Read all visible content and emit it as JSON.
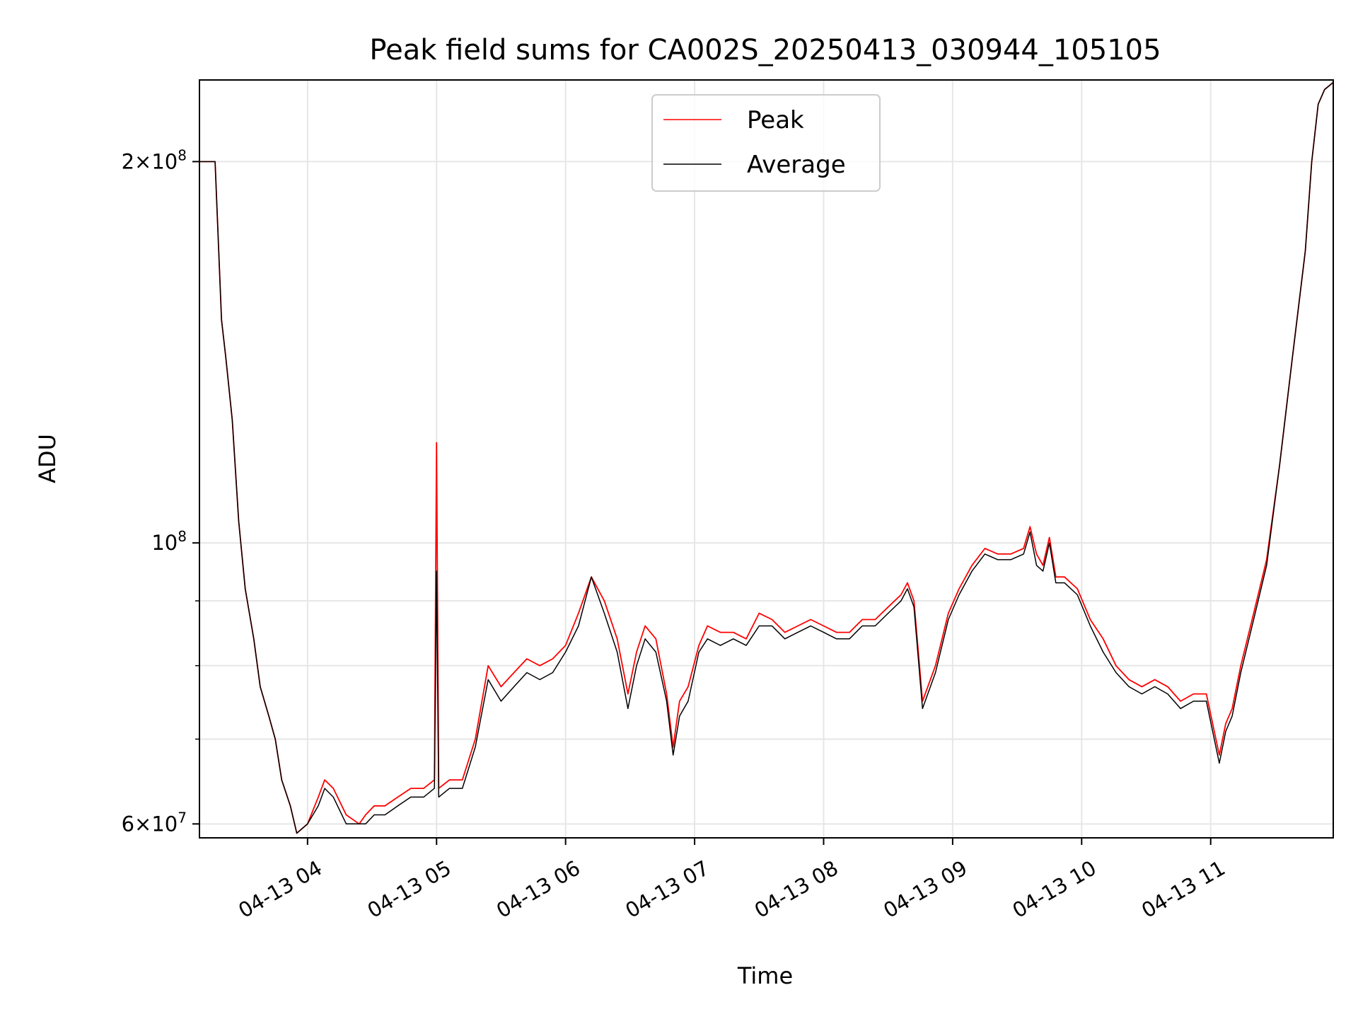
{
  "chart_data": {
    "type": "line",
    "title": "Peak field sums for CA002S_20250413_030944_105105",
    "xlabel": "Time",
    "ylabel": "ADU",
    "yscale": "log",
    "ylim": [
      58500000,
      232000000
    ],
    "xlim": [
      "2025-04-13 03:09:44",
      "2025-04-13 11:57:00"
    ],
    "grid": true,
    "legend": "upper center",
    "x_ticks": [
      {
        "time": "2025-04-13 04:00",
        "label": "04-13 04"
      },
      {
        "time": "2025-04-13 05:00",
        "label": "04-13 05"
      },
      {
        "time": "2025-04-13 06:00",
        "label": "04-13 06"
      },
      {
        "time": "2025-04-13 07:00",
        "label": "04-13 07"
      },
      {
        "time": "2025-04-13 08:00",
        "label": "04-13 08"
      },
      {
        "time": "2025-04-13 09:00",
        "label": "04-13 09"
      },
      {
        "time": "2025-04-13 10:00",
        "label": "04-13 10"
      },
      {
        "time": "2025-04-13 11:00",
        "label": "04-13 11"
      }
    ],
    "y_major_ticks": [
      {
        "value": 60000000,
        "mantissa": "6",
        "exponent": "7"
      },
      {
        "value": 100000000,
        "mantissa": "",
        "exponent": "8"
      },
      {
        "value": 200000000,
        "mantissa": "2",
        "exponent": "8"
      }
    ],
    "y_minor_ticks": [
      70000000,
      80000000,
      90000000
    ],
    "x": [
      "2025-04-13 03:09:44",
      "2025-04-13 03:13",
      "2025-04-13 03:17",
      "2025-04-13 03:20",
      "2025-04-13 03:22",
      "2025-04-13 03:25",
      "2025-04-13 03:28",
      "2025-04-13 03:31",
      "2025-04-13 03:35",
      "2025-04-13 03:38",
      "2025-04-13 03:42",
      "2025-04-13 03:45",
      "2025-04-13 03:48",
      "2025-04-13 03:52",
      "2025-04-13 03:55",
      "2025-04-13 04:00",
      "2025-04-13 04:05",
      "2025-04-13 04:08",
      "2025-04-13 04:12",
      "2025-04-13 04:18",
      "2025-04-13 04:24",
      "2025-04-13 04:27",
      "2025-04-13 04:31",
      "2025-04-13 04:36",
      "2025-04-13 04:42",
      "2025-04-13 04:48",
      "2025-04-13 04:54",
      "2025-04-13 04:59",
      "2025-04-13 05:00",
      "2025-04-13 05:01",
      "2025-04-13 05:06",
      "2025-04-13 05:12",
      "2025-04-13 05:18",
      "2025-04-13 05:24",
      "2025-04-13 05:30",
      "2025-04-13 05:36",
      "2025-04-13 05:42",
      "2025-04-13 05:48",
      "2025-04-13 05:54",
      "2025-04-13 06:00",
      "2025-04-13 06:06",
      "2025-04-13 06:12",
      "2025-04-13 06:18",
      "2025-04-13 06:24",
      "2025-04-13 06:29",
      "2025-04-13 06:33",
      "2025-04-13 06:37",
      "2025-04-13 06:42",
      "2025-04-13 06:47",
      "2025-04-13 06:50",
      "2025-04-13 06:53",
      "2025-04-13 06:57",
      "2025-04-13 07:02",
      "2025-04-13 07:06",
      "2025-04-13 07:12",
      "2025-04-13 07:18",
      "2025-04-13 07:24",
      "2025-04-13 07:30",
      "2025-04-13 07:36",
      "2025-04-13 07:42",
      "2025-04-13 07:48",
      "2025-04-13 07:54",
      "2025-04-13 08:00",
      "2025-04-13 08:06",
      "2025-04-13 08:12",
      "2025-04-13 08:18",
      "2025-04-13 08:24",
      "2025-04-13 08:30",
      "2025-04-13 08:36",
      "2025-04-13 08:39",
      "2025-04-13 08:42",
      "2025-04-13 08:46",
      "2025-04-13 08:52",
      "2025-04-13 08:58",
      "2025-04-13 09:03",
      "2025-04-13 09:09",
      "2025-04-13 09:15",
      "2025-04-13 09:21",
      "2025-04-13 09:27",
      "2025-04-13 09:33",
      "2025-04-13 09:36",
      "2025-04-13 09:39",
      "2025-04-13 09:42",
      "2025-04-13 09:45",
      "2025-04-13 09:48",
      "2025-04-13 09:52",
      "2025-04-13 09:58",
      "2025-04-13 10:04",
      "2025-04-13 10:10",
      "2025-04-13 10:16",
      "2025-04-13 10:22",
      "2025-04-13 10:28",
      "2025-04-13 10:34",
      "2025-04-13 10:40",
      "2025-04-13 10:46",
      "2025-04-13 10:52",
      "2025-04-13 10:58",
      "2025-04-13 11:04",
      "2025-04-13 11:07",
      "2025-04-13 11:10",
      "2025-04-13 11:14",
      "2025-04-13 11:20",
      "2025-04-13 11:26",
      "2025-04-13 11:32",
      "2025-04-13 11:38",
      "2025-04-13 11:44",
      "2025-04-13 11:47",
      "2025-04-13 11:50",
      "2025-04-13 11:53",
      "2025-04-13 11:57"
    ],
    "series": [
      {
        "name": "Peak",
        "color": "#ff0000",
        "values": [
          200000000,
          200000000,
          200000000,
          150000000,
          140000000,
          125000000,
          104000000,
          92000000,
          84000000,
          77000000,
          73000000,
          70000000,
          65000000,
          62000000,
          59000000,
          60000000,
          63000000,
          65000000,
          64000000,
          61000000,
          60000000,
          61000000,
          62000000,
          62000000,
          63000000,
          64000000,
          64000000,
          65000000,
          120000000,
          64000000,
          65000000,
          65000000,
          70000000,
          80000000,
          77000000,
          79000000,
          81000000,
          80000000,
          81000000,
          83000000,
          88000000,
          94000000,
          90000000,
          84000000,
          76000000,
          82000000,
          86000000,
          84000000,
          76000000,
          69000000,
          75000000,
          77000000,
          83000000,
          86000000,
          85000000,
          85000000,
          84000000,
          88000000,
          87000000,
          85000000,
          86000000,
          87000000,
          86000000,
          85000000,
          85000000,
          87000000,
          87000000,
          89000000,
          91000000,
          93000000,
          90000000,
          75000000,
          80000000,
          88000000,
          92000000,
          96000000,
          99000000,
          98000000,
          98000000,
          99000000,
          103000000,
          98000000,
          96000000,
          101000000,
          94000000,
          94000000,
          92000000,
          87000000,
          84000000,
          80000000,
          78000000,
          77000000,
          78000000,
          77000000,
          75000000,
          76000000,
          76000000,
          68000000,
          72000000,
          74000000,
          80000000,
          88000000,
          97000000,
          115000000,
          140000000,
          170000000,
          200000000,
          222000000,
          228000000,
          231000000
        ]
      },
      {
        "name": "Average",
        "color": "#000000",
        "values": [
          200000000,
          200000000,
          200000000,
          150000000,
          140000000,
          125000000,
          104000000,
          92000000,
          84000000,
          77000000,
          73000000,
          70000000,
          65000000,
          62000000,
          59000000,
          60000000,
          62000000,
          64000000,
          63000000,
          60000000,
          60000000,
          60000000,
          61000000,
          61000000,
          62000000,
          63000000,
          63000000,
          64000000,
          95000000,
          63000000,
          64000000,
          64000000,
          69000000,
          78000000,
          75000000,
          77000000,
          79000000,
          78000000,
          79000000,
          82000000,
          86000000,
          94000000,
          88000000,
          82000000,
          74000000,
          80000000,
          84000000,
          82000000,
          75000000,
          68000000,
          73000000,
          75000000,
          82000000,
          84000000,
          83000000,
          84000000,
          83000000,
          86000000,
          86000000,
          84000000,
          85000000,
          86000000,
          85000000,
          84000000,
          84000000,
          86000000,
          86000000,
          88000000,
          90000000,
          92000000,
          89000000,
          74000000,
          79000000,
          87000000,
          91000000,
          95000000,
          98000000,
          97000000,
          97000000,
          98000000,
          102000000,
          96000000,
          95000000,
          100000000,
          93000000,
          93000000,
          91000000,
          86000000,
          82000000,
          79000000,
          77000000,
          76000000,
          77000000,
          76000000,
          74000000,
          75000000,
          75000000,
          67000000,
          71000000,
          73000000,
          79000000,
          87000000,
          96000000,
          115000000,
          140000000,
          170000000,
          200000000,
          222000000,
          228000000,
          231000000
        ]
      }
    ]
  }
}
